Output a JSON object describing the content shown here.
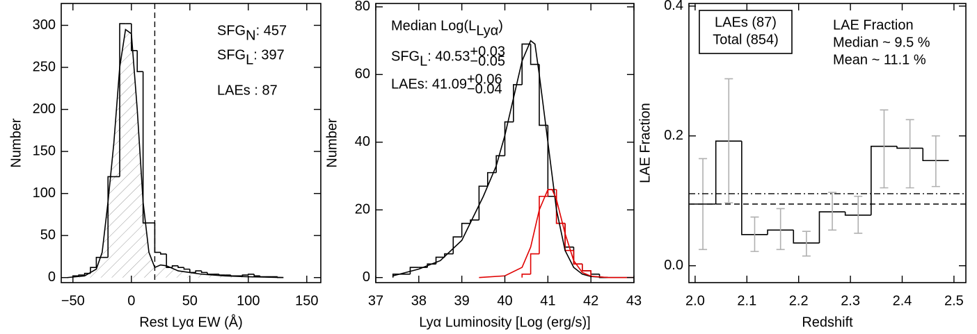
{
  "chart_data": [
    {
      "type": "histogram",
      "xlabel": "Rest Lyα EW (Å)",
      "ylabel": "Number",
      "xlim": [
        -60,
        162
      ],
      "ylim": [
        -6,
        326
      ],
      "xticks": [
        {
          "value": -50,
          "label": "−50"
        },
        0,
        50,
        100,
        150
      ],
      "yticks": [
        0,
        50,
        100,
        150,
        200,
        250,
        300
      ],
      "series": [
        {
          "color": "#000000",
          "closed_ends": true,
          "bins": [
            -50,
            -45,
            -40,
            -35,
            -30,
            -25,
            -20,
            -15,
            -10,
            -5,
            0,
            5,
            10,
            15,
            20,
            25,
            30,
            35,
            40,
            45,
            50,
            55,
            60,
            65,
            70,
            75,
            80,
            85,
            90,
            95,
            100,
            105,
            110,
            115,
            120,
            125,
            130
          ],
          "values": [
            2,
            3,
            5,
            12,
            24,
            24,
            120,
            120,
            302,
            302,
            270,
            245,
            65,
            65,
            30,
            28,
            12,
            14,
            12,
            10,
            6,
            8,
            6,
            4,
            4,
            3,
            3,
            2,
            2,
            3,
            4,
            2,
            1,
            1,
            1,
            0
          ]
        }
      ],
      "curves": [
        {
          "color": "#000000",
          "hatch": true,
          "x": [
            -55,
            -40,
            -30,
            -25,
            -20,
            -15,
            -10,
            -5,
            0,
            5,
            10,
            15,
            20,
            25,
            30,
            40,
            50,
            60,
            80,
            100,
            130
          ],
          "values": [
            0,
            2,
            10,
            30,
            90,
            160,
            250,
            295,
            290,
            200,
            90,
            30,
            12,
            15,
            14,
            8,
            6,
            4,
            2,
            1,
            0
          ]
        }
      ],
      "vlines": [
        {
          "value": 20,
          "style": "dashed"
        }
      ],
      "annotations": [
        {
          "color": "#000000",
          "parts": [
            {
              "text": "SFG"
            },
            {
              "text": "N",
              "pos": "sub"
            },
            {
              "text": " : 457"
            }
          ]
        },
        {
          "color": "#000000",
          "parts": [
            {
              "text": "SFG"
            },
            {
              "text": "L",
              "pos": "sub"
            },
            {
              "text": " : 397"
            }
          ]
        },
        {
          "color": "#000000",
          "parts": [
            {
              "text": "LAEs : 87"
            }
          ]
        }
      ]
    },
    {
      "type": "histogram",
      "xlabel": "Lyα Luminosity [Log (erg/s)]",
      "ylabel": "Number",
      "xlim": [
        37,
        43
      ],
      "ylim": [
        -1.5,
        81
      ],
      "xticks": [
        37,
        38,
        39,
        40,
        41,
        42,
        43
      ],
      "yticks": [
        0,
        20,
        40,
        60,
        80
      ],
      "series": [
        {
          "color": "#000000",
          "closed_ends": true,
          "bins": [
            37.4,
            37.6,
            37.8,
            38.0,
            38.2,
            38.4,
            38.6,
            38.8,
            39.0,
            39.2,
            39.4,
            39.6,
            39.8,
            40.0,
            40.2,
            40.4,
            40.6,
            40.8,
            41.0,
            41.2,
            41.4,
            41.6,
            41.8,
            42.0,
            42.2,
            42.4
          ],
          "values": [
            1,
            1,
            3,
            3,
            4,
            6,
            7,
            12,
            16,
            17,
            27,
            31,
            36,
            46,
            57,
            69,
            63,
            45,
            24,
            16,
            9,
            4,
            2,
            1,
            0
          ]
        },
        {
          "color": "#e00000",
          "closed_ends": true,
          "bins": [
            40.4,
            40.6,
            40.8,
            41.0,
            41.2,
            41.4,
            41.6,
            41.8,
            42.0
          ],
          "values": [
            1,
            7,
            24,
            26,
            16,
            8,
            4,
            2
          ]
        }
      ],
      "curves": [
        {
          "color": "#000000",
          "hatch": false,
          "x": [
            37.4,
            38,
            38.5,
            39,
            39.5,
            39.8,
            40,
            40.2,
            40.4,
            40.6,
            40.7,
            40.8,
            41,
            41.2,
            41.4,
            41.6,
            41.8,
            42,
            42.4,
            43
          ],
          "values": [
            0.5,
            2.5,
            5,
            11,
            24,
            33,
            42,
            53,
            64,
            70,
            69,
            60,
            40,
            20,
            8,
            3,
            1,
            0.3,
            0,
            0
          ]
        },
        {
          "color": "#e00000",
          "hatch": false,
          "x": [
            39.4,
            40,
            40.4,
            40.6,
            40.8,
            41,
            41.1,
            41.2,
            41.4,
            41.6,
            41.8,
            42,
            42.4,
            43
          ],
          "values": [
            0,
            0.5,
            3,
            9,
            20,
            26,
            26,
            23,
            13,
            5,
            1.5,
            0.4,
            0,
            0
          ]
        }
      ],
      "vlines": [],
      "annotations": [
        {
          "color": "#000000",
          "parts": [
            {
              "text": "Median Log(L"
            },
            {
              "text": "Lyα",
              "pos": "sub"
            },
            {
              "text": ")"
            }
          ]
        },
        {
          "color": "#000000",
          "parts": [
            {
              "text": "SFG"
            },
            {
              "text": "L",
              "pos": "sub"
            },
            {
              "text": ": 40.53"
            },
            {
              "text": "+0.03",
              "pos": "sup"
            },
            {
              "text": "−0.05",
              "pos": "sub"
            }
          ]
        },
        {
          "color": "#e00000",
          "parts": [
            {
              "text": "LAEs: 41.09"
            },
            {
              "text": "+0.06",
              "pos": "sup"
            },
            {
              "text": "−0.04",
              "pos": "sub"
            }
          ]
        }
      ]
    },
    {
      "type": "histogram",
      "xlabel": "Redshift",
      "ylabel": "LAE Fraction",
      "xlim": [
        1.988,
        2.523
      ],
      "ylim": [
        -0.026,
        0.404
      ],
      "xticks": [
        {
          "value": 2,
          "label": "2.0"
        },
        2.1,
        2.2,
        2.3,
        2.4,
        2.5
      ],
      "yticks": [
        {
          "value": 0,
          "label": "0.0"
        },
        0.2,
        0.4
      ],
      "series": [
        {
          "color": "#000000",
          "closed_ends": false,
          "error_color": "#b0b0b0",
          "bins": [
            1.99,
            2.04,
            2.09,
            2.14,
            2.19,
            2.24,
            2.29,
            2.34,
            2.39,
            2.44,
            2.49
          ],
          "values": [
            0.095,
            0.192,
            0.048,
            0.055,
            0.035,
            0.083,
            0.078,
            0.184,
            0.181,
            0.162
          ],
          "lower": [
            0.025,
            0.097,
            0.022,
            0.025,
            0.015,
            0.055,
            0.05,
            0.12,
            0.12,
            0.122
          ],
          "upper": [
            0.165,
            0.288,
            0.075,
            0.088,
            0.053,
            0.113,
            0.107,
            0.24,
            0.225,
            0.2
          ]
        }
      ],
      "curves": [],
      "vlines": [],
      "hlines": [
        {
          "value": 0.111,
          "style": "dash-dot"
        },
        {
          "value": 0.095,
          "style": "dashed"
        }
      ],
      "legend_box": [
        "LAEs (87)",
        "Total (854)"
      ],
      "annotations": [
        {
          "color": "#000000",
          "parts": [
            {
              "text": "LAE Fraction"
            }
          ]
        },
        {
          "color": "#000000",
          "parts": [
            {
              "text": "Median ~ 9.5 %"
            }
          ]
        },
        {
          "color": "#000000",
          "parts": [
            {
              "text": "Mean ~ 11.1 %"
            }
          ]
        }
      ]
    }
  ]
}
